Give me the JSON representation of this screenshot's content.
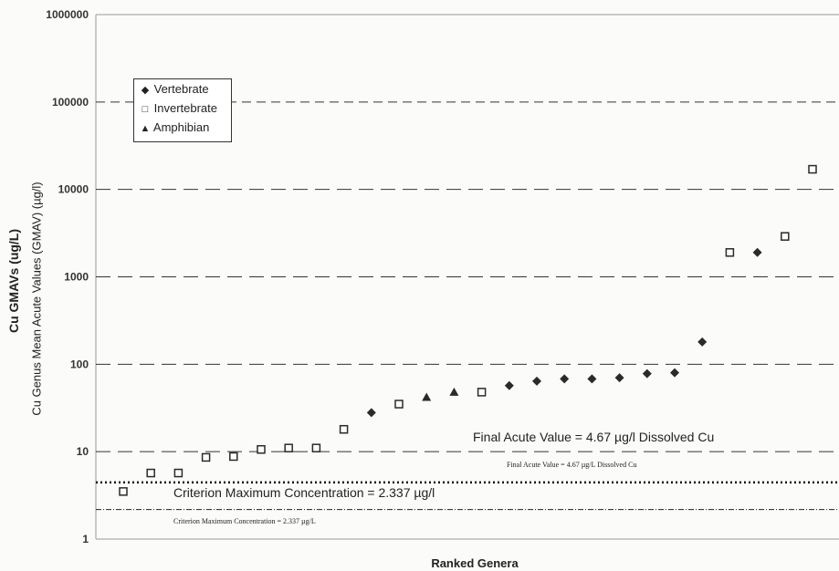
{
  "chart_data": {
    "type": "scatter",
    "xlabel": "Ranked Genera",
    "ylabel": "Cu GMAVs (ug/L)",
    "ylabel2": "Cu Genus Mean Acute Values (GMAV) (µg/l)",
    "y_scale": "log",
    "ylim": [
      1,
      1000000
    ],
    "y_ticks": [
      "1",
      "10",
      "100",
      "1000",
      "10000",
      "100000",
      "1000000"
    ],
    "x_rank_count": 27,
    "grid": "horizontal dashed lines at decades",
    "legend_placement": "top-left",
    "series": [
      {
        "name": "Vertebrate",
        "marker": "diamond",
        "points": [
          [
            10,
            28
          ],
          [
            15,
            57
          ],
          [
            16,
            64
          ],
          [
            17,
            68
          ],
          [
            18,
            68
          ],
          [
            19,
            70
          ],
          [
            20,
            78
          ],
          [
            21,
            80
          ],
          [
            22,
            180
          ],
          [
            24,
            1900
          ]
        ]
      },
      {
        "name": "Invertebrate",
        "marker": "square",
        "points": [
          [
            1,
            3.5
          ],
          [
            2,
            5.7
          ],
          [
            3,
            5.7
          ],
          [
            4,
            8.6
          ],
          [
            5,
            8.8
          ],
          [
            6,
            10.6
          ],
          [
            7,
            11
          ],
          [
            8,
            11
          ],
          [
            9,
            18
          ],
          [
            11,
            35
          ],
          [
            14,
            48
          ],
          [
            23,
            1900
          ],
          [
            25,
            2900
          ],
          [
            26,
            17000
          ]
        ]
      },
      {
        "name": "Amphibian",
        "marker": "triangle",
        "points": [
          [
            12,
            42
          ],
          [
            13,
            48
          ]
        ]
      }
    ],
    "reference_lines": [
      {
        "label": "Final Acute Value = 4.67 µg/l Dissolved Cu",
        "small_label": "Final Acute Value = 4.67 µg/L Dissolved Cu",
        "value": 4.67
      },
      {
        "label": "Criterion Maximum Concentration = 2.337 µg/l",
        "small_label": "Criterion Maximum Concentration = 2.337 µg/L",
        "value": 2.337
      }
    ]
  },
  "colors": {
    "marker": "#2a2a2a",
    "grid": "#333333",
    "background": "#fbfbfa"
  }
}
